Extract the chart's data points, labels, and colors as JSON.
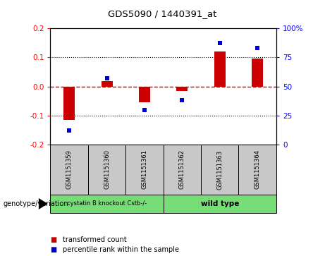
{
  "title": "GDS5090 / 1440391_at",
  "samples": [
    "GSM1151359",
    "GSM1151360",
    "GSM1151361",
    "GSM1151362",
    "GSM1151363",
    "GSM1151364"
  ],
  "transformed_count": [
    -0.115,
    0.018,
    -0.055,
    -0.015,
    0.12,
    0.095
  ],
  "percentile_rank": [
    12,
    57,
    30,
    38,
    87,
    83
  ],
  "ylim_left": [
    -0.2,
    0.2
  ],
  "ylim_right": [
    0,
    100
  ],
  "yticks_left": [
    -0.2,
    -0.1,
    0.0,
    0.1,
    0.2
  ],
  "yticks_right": [
    0,
    25,
    50,
    75,
    100
  ],
  "bar_color": "#cc0000",
  "dot_color": "#0000cc",
  "zero_line_color": "#cc0000",
  "grid_color": "#000000",
  "group1_label": "cystatin B knockout Cstb-/-",
  "group2_label": "wild type",
  "group1_indices": [
    0,
    1,
    2
  ],
  "group2_indices": [
    3,
    4,
    5
  ],
  "group1_color": "#77dd77",
  "group2_color": "#77dd77",
  "genotype_label": "genotype/variation",
  "legend_bar_label": "transformed count",
  "legend_dot_label": "percentile rank within the sample",
  "background_color": "#ffffff",
  "sample_box_color": "#c8c8c8",
  "bar_width": 0.3,
  "dot_markersize": 5
}
